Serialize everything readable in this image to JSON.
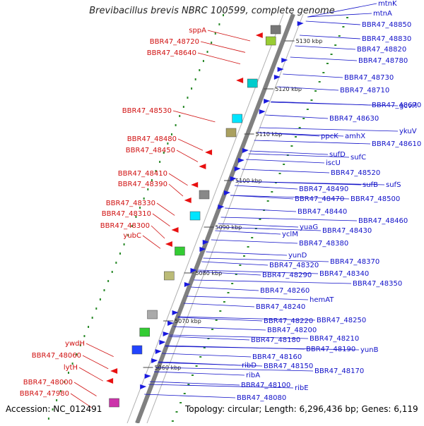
{
  "title": "Brevibacillus brevis NBRC 100599, complete genome",
  "accession": "Accession: NC_012491",
  "topology": "Topology: circular; Length: 6,296,436 bp; Genes: 6,119",
  "colors": {
    "left_label": "#d01010",
    "right_label": "#1010c8",
    "backbone": "#808080",
    "left_gene": "#e81010",
    "right_gene": "#1a1adf",
    "gc_dots": "#2a8a2a"
  },
  "axis_ticks": [
    "5130 kbp",
    "5120 kbp",
    "5110 kbp",
    "5100 kbp",
    "5090 kbp",
    "5080 kbp",
    "5070 kbp",
    "5060 kbp"
  ],
  "left_labels": [
    "sppA",
    "BBR47_48720",
    "BBR47_48640",
    "BBR47_48530",
    "BBR47_48480",
    "BBR47_48450",
    "BBR47_48410",
    "BBR47_48390",
    "BBR47_48330",
    "BBR47_48310",
    "BBR47_48300",
    "yubC",
    "ywdH",
    "BBR47_48060",
    "lytH",
    "BBR47_48000",
    "BBR47_47980"
  ],
  "right_labels": [
    "mtnK",
    "mtnA",
    "BBR47_48850",
    "BBR47_48830",
    "BBR47_48820",
    "BBR47_48780",
    "BBR47_48730",
    "BBR47_48710",
    "BBR47_48670",
    "gcvH",
    "ykuV",
    "BBR47_48630",
    "amhX",
    "BBR47_48610",
    "ppcK",
    "sufC",
    "sufD",
    "iscU",
    "BBR47_48520",
    "sufB",
    "sufS",
    "BBR47_48490",
    "BBR47_48470",
    "BBR47_48500",
    "BBR47_48440",
    "BBR47_48460",
    "yuaG",
    "BBR47_48430",
    "yclM",
    "BBR47_48380",
    "yunD",
    "BBR47_48370",
    "BBR47_48320",
    "BBR47_48340",
    "BBR47_48290",
    "BBR47_48350",
    "BBR47_48260",
    "hemAT",
    "BBR47_48240",
    "BBR47_48250",
    "BBR47_48220",
    "BBR47_48200",
    "BBR47_48210",
    "BBR47_48180",
    "BBR47_48190",
    "yunB",
    "BBR47_48160",
    "BBR47_48150",
    "BBR47_48170",
    "ribD",
    "ribA",
    "BBR47_48100",
    "ribE",
    "BBR47_48080"
  ]
}
